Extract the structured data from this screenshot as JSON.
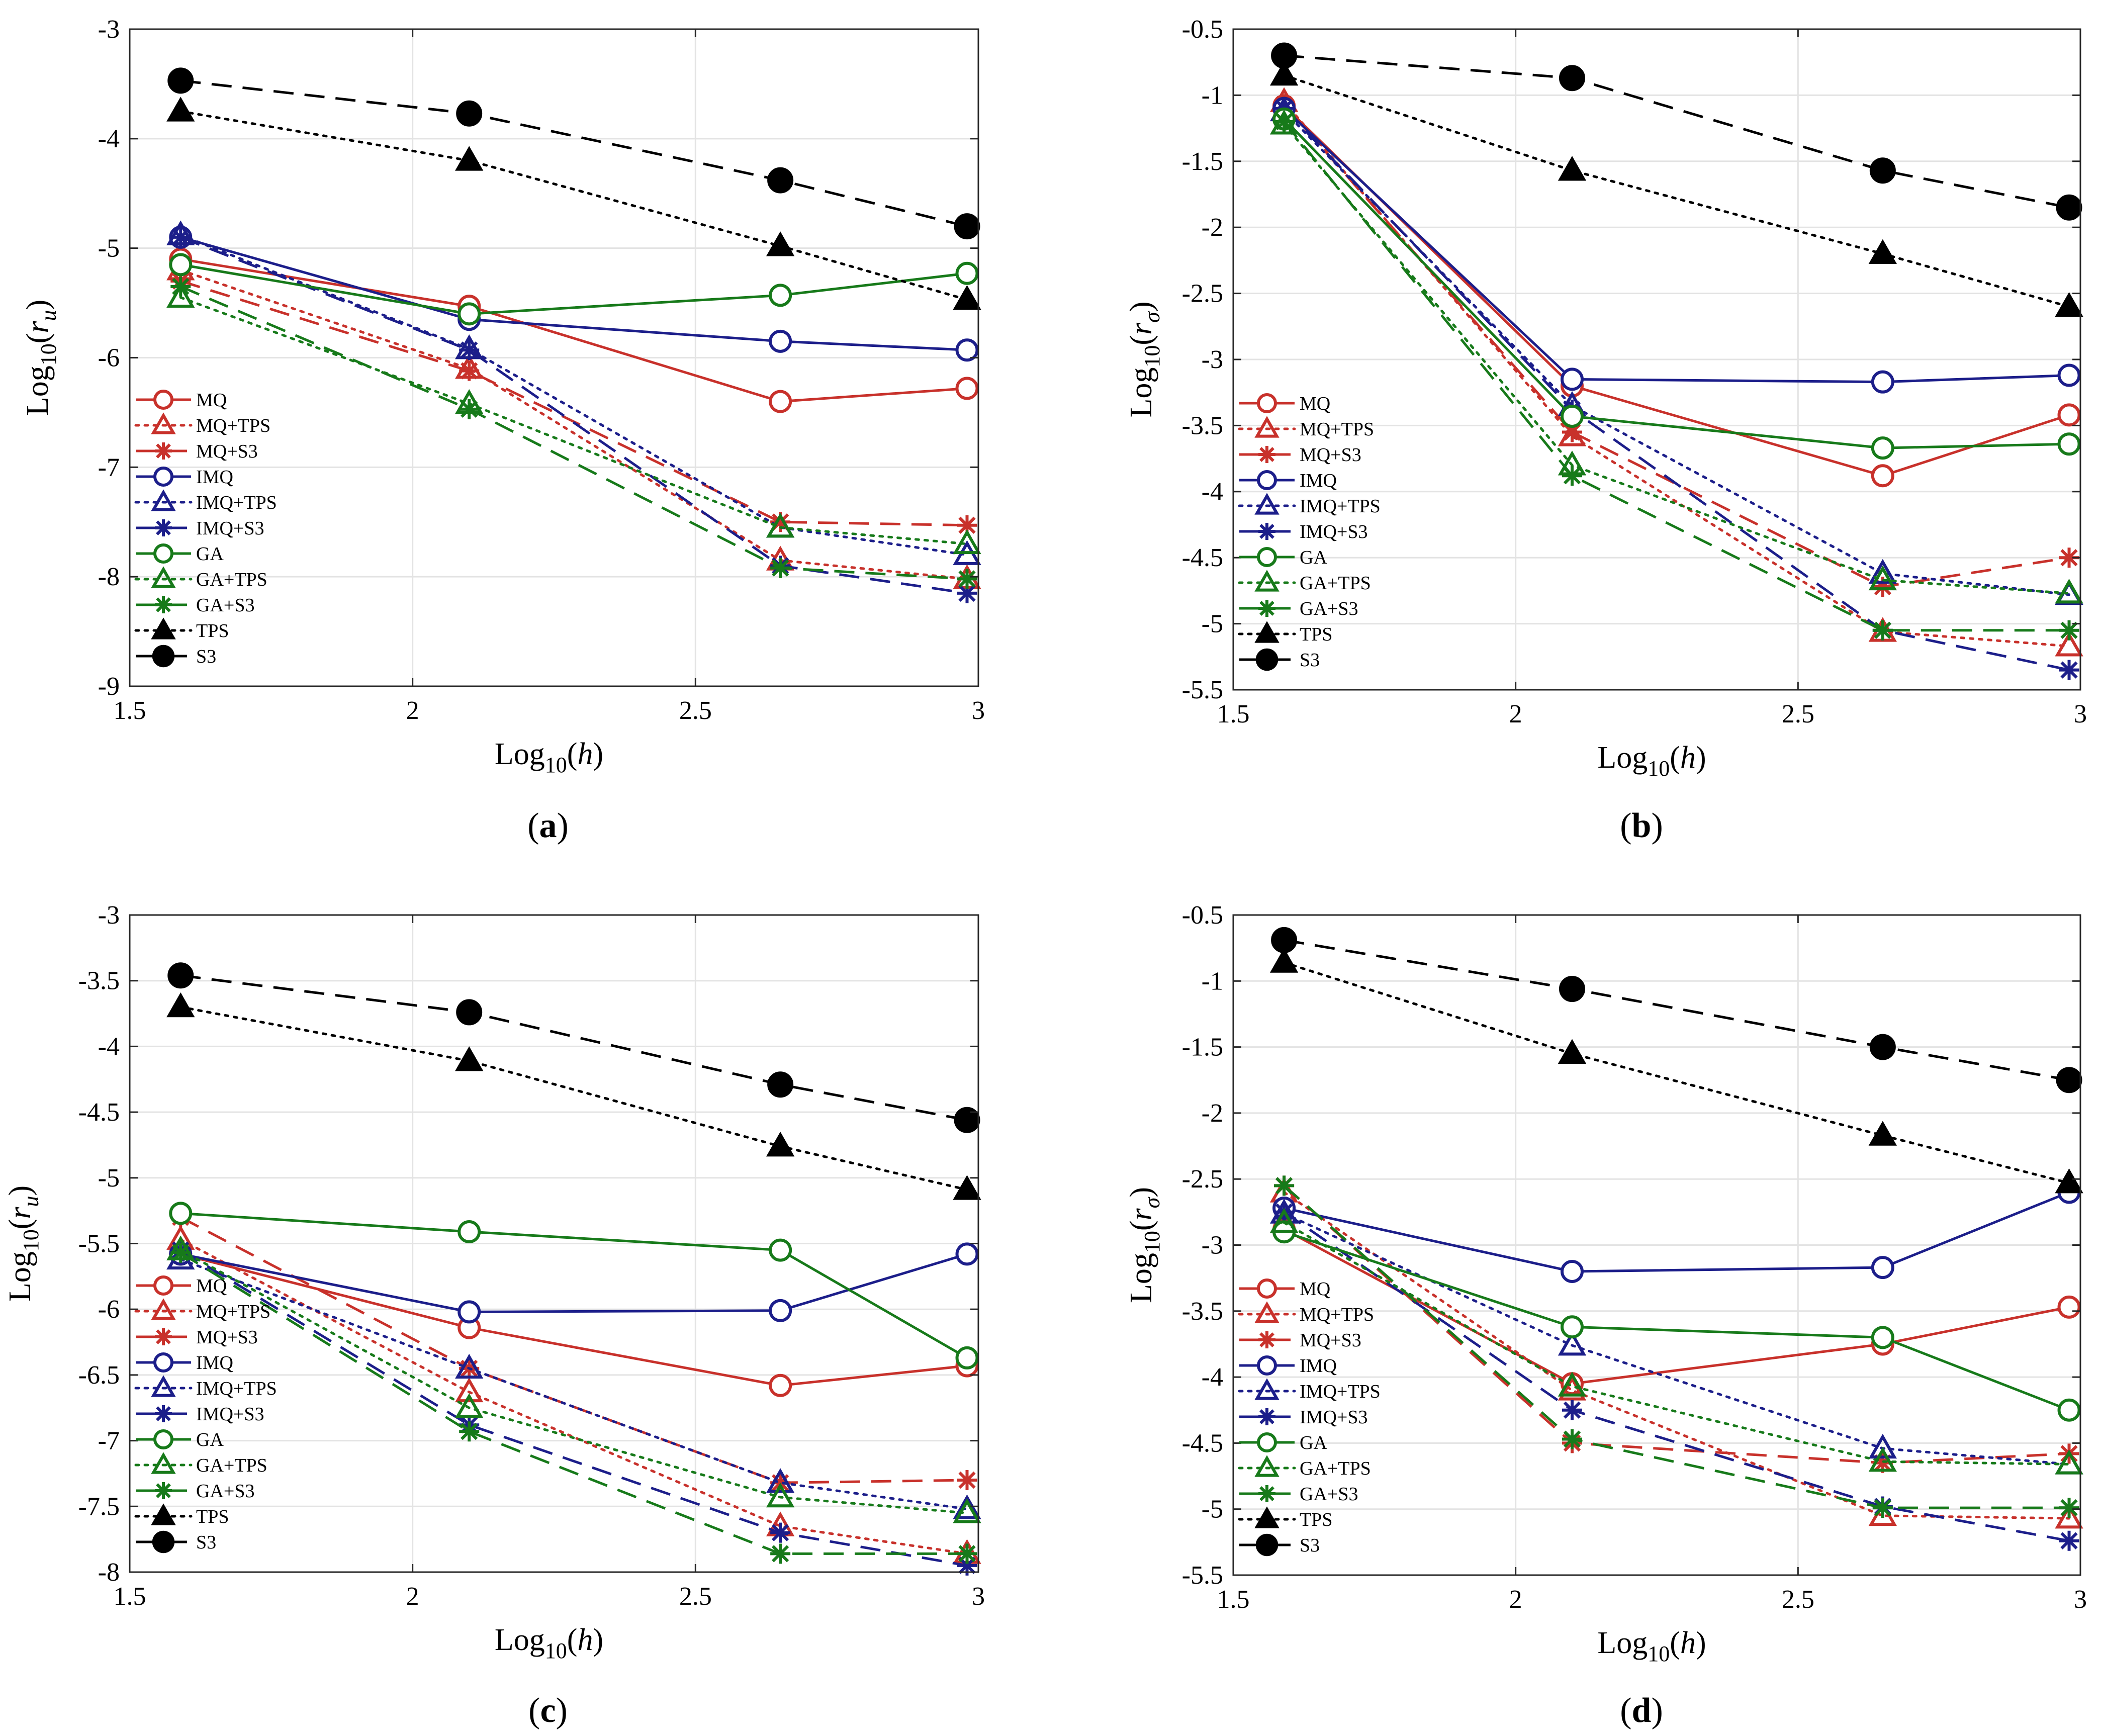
{
  "chart_data": [
    {
      "type": "line",
      "panel_label": "(a)",
      "panel_letter": "a",
      "xlabel": {
        "base": "Log",
        "sub": "10",
        "var": "h"
      },
      "ylabel": {
        "base": "Log",
        "sub": "10",
        "var": "r",
        "var_sub": "u"
      },
      "xlim": [
        1.5,
        3
      ],
      "ylim": [
        -9,
        -3
      ],
      "x_ticks": [
        1.5,
        2,
        2.5,
        3
      ],
      "x_tick_labels": [
        "1.5",
        "2",
        "2.5",
        "3"
      ],
      "y_ticks": [
        -9,
        -8,
        -7,
        -6,
        -5,
        -4,
        -3
      ],
      "y_tick_labels": [
        "-9",
        "-8",
        "-7",
        "-6",
        "-5",
        "-4",
        "-3"
      ],
      "grid": true,
      "legend_position": "lower-left",
      "x": [
        1.59,
        2.1,
        2.65,
        2.98
      ],
      "series": [
        {
          "name": "MQ",
          "values": [
            -5.1,
            -5.53,
            -6.4,
            -6.28
          ]
        },
        {
          "name": "MQ+TPS",
          "values": [
            -5.2,
            -6.1,
            -7.85,
            -8.02
          ]
        },
        {
          "name": "MQ+S3",
          "values": [
            -5.3,
            -6.12,
            -7.5,
            -7.53
          ]
        },
        {
          "name": "IMQ",
          "values": [
            -4.9,
            -5.65,
            -5.85,
            -5.93
          ]
        },
        {
          "name": "IMQ+TPS",
          "values": [
            -4.88,
            -5.92,
            -7.55,
            -7.8
          ]
        },
        {
          "name": "IMQ+S3",
          "values": [
            -4.9,
            -5.93,
            -7.9,
            -8.15
          ]
        },
        {
          "name": "GA",
          "values": [
            -5.15,
            -5.6,
            -5.43,
            -5.23
          ]
        },
        {
          "name": "GA+TPS",
          "values": [
            -5.45,
            -6.42,
            -7.55,
            -7.7
          ]
        },
        {
          "name": "GA+S3",
          "values": [
            -5.35,
            -6.47,
            -7.92,
            -8.02
          ]
        },
        {
          "name": "TPS",
          "values": [
            -3.75,
            -4.2,
            -4.98,
            -5.47
          ]
        },
        {
          "name": "S3",
          "values": [
            -3.47,
            -3.77,
            -4.38,
            -4.8
          ]
        }
      ]
    },
    {
      "type": "line",
      "panel_label": "(b)",
      "panel_letter": "b",
      "xlabel": {
        "base": "Log",
        "sub": "10",
        "var": "h"
      },
      "ylabel": {
        "base": "Log",
        "sub": "10",
        "var": "r",
        "var_sub": "σ"
      },
      "xlim": [
        1.5,
        3
      ],
      "ylim": [
        -5.5,
        -0.5
      ],
      "x_ticks": [
        1.5,
        2,
        2.5,
        3
      ],
      "x_tick_labels": [
        "1.5",
        "2",
        "2.5",
        "3"
      ],
      "y_ticks": [
        -5.5,
        -5,
        -4.5,
        -4,
        -3.5,
        -3,
        -2.5,
        -2,
        -1.5,
        -1,
        -0.5
      ],
      "y_tick_labels": [
        "-5.5",
        "-5",
        "-4.5",
        "-4",
        "-3.5",
        "-3",
        "-2.5",
        "-2",
        "-1.5",
        "-1",
        "-0.5"
      ],
      "grid": true,
      "legend_position": "lower-left",
      "x": [
        1.59,
        2.1,
        2.65,
        2.98
      ],
      "series": [
        {
          "name": "MQ",
          "values": [
            -1.08,
            -3.2,
            -3.88,
            -3.42
          ]
        },
        {
          "name": "MQ+TPS",
          "values": [
            -1.05,
            -3.58,
            -5.06,
            -5.17
          ]
        },
        {
          "name": "MQ+S3",
          "values": [
            -1.07,
            -3.55,
            -4.72,
            -4.5
          ]
        },
        {
          "name": "IMQ",
          "values": [
            -1.1,
            -3.15,
            -3.17,
            -3.12
          ]
        },
        {
          "name": "IMQ+TPS",
          "values": [
            -1.12,
            -3.35,
            -4.62,
            -4.78
          ]
        },
        {
          "name": "IMQ+S3",
          "values": [
            -1.1,
            -3.38,
            -5.05,
            -5.35
          ]
        },
        {
          "name": "GA",
          "values": [
            -1.18,
            -3.43,
            -3.67,
            -3.64
          ]
        },
        {
          "name": "GA+TPS",
          "values": [
            -1.22,
            -3.8,
            -4.67,
            -4.77
          ]
        },
        {
          "name": "GA+S3",
          "values": [
            -1.2,
            -3.88,
            -5.05,
            -5.05
          ]
        },
        {
          "name": "TPS",
          "values": [
            -0.85,
            -1.57,
            -2.2,
            -2.6
          ]
        },
        {
          "name": "S3",
          "values": [
            -0.7,
            -0.87,
            -1.57,
            -1.85
          ]
        }
      ]
    },
    {
      "type": "line",
      "panel_label": "(c)",
      "panel_letter": "c",
      "xlabel": {
        "base": "Log",
        "sub": "10",
        "var": "h"
      },
      "ylabel": {
        "base": "Log",
        "sub": "10",
        "var": "r",
        "var_sub": "u"
      },
      "xlim": [
        1.5,
        3
      ],
      "ylim": [
        -8,
        -3
      ],
      "x_ticks": [
        1.5,
        2,
        2.5,
        3
      ],
      "x_tick_labels": [
        "1.5",
        "2",
        "2.5",
        "3"
      ],
      "y_ticks": [
        -8,
        -7.5,
        -7,
        -6.5,
        -6,
        -5.5,
        -5,
        -4.5,
        -4,
        -3.5,
        -3
      ],
      "y_tick_labels": [
        "-8",
        "-7.5",
        "-7",
        "-6.5",
        "-6",
        "-5.5",
        "-5",
        "-4.5",
        "-4",
        "-3.5",
        "-3"
      ],
      "grid": true,
      "legend_position": "lower-left",
      "x": [
        1.59,
        2.1,
        2.65,
        2.98
      ],
      "series": [
        {
          "name": "MQ",
          "values": [
            -5.58,
            -6.14,
            -6.58,
            -6.43
          ]
        },
        {
          "name": "MQ+TPS",
          "values": [
            -5.47,
            -6.63,
            -7.65,
            -7.86
          ]
        },
        {
          "name": "MQ+S3",
          "values": [
            -5.3,
            -6.45,
            -7.32,
            -7.3
          ]
        },
        {
          "name": "IMQ",
          "values": [
            -5.58,
            -6.02,
            -6.01,
            -5.58
          ]
        },
        {
          "name": "IMQ+TPS",
          "values": [
            -5.62,
            -6.45,
            -7.32,
            -7.52
          ]
        },
        {
          "name": "IMQ+S3",
          "values": [
            -5.55,
            -6.88,
            -7.7,
            -7.95
          ]
        },
        {
          "name": "GA",
          "values": [
            -5.27,
            -5.41,
            -5.55,
            -6.37
          ]
        },
        {
          "name": "GA+TPS",
          "values": [
            -5.55,
            -6.75,
            -7.43,
            -7.55
          ]
        },
        {
          "name": "GA+S3",
          "values": [
            -5.57,
            -6.93,
            -7.86,
            -7.86
          ]
        },
        {
          "name": "TPS",
          "values": [
            -3.7,
            -4.11,
            -4.76,
            -5.09
          ]
        },
        {
          "name": "S3",
          "values": [
            -3.46,
            -3.74,
            -4.29,
            -4.56
          ]
        }
      ]
    },
    {
      "type": "line",
      "panel_label": "(d)",
      "panel_letter": "d",
      "xlabel": {
        "base": "Log",
        "sub": "10",
        "var": "h"
      },
      "ylabel": {
        "base": "Log",
        "sub": "10",
        "var": "r",
        "var_sub": "σ"
      },
      "xlim": [
        1.5,
        3
      ],
      "ylim": [
        -5.5,
        -0.5
      ],
      "x_ticks": [
        1.5,
        2,
        2.5,
        3
      ],
      "x_tick_labels": [
        "1.5",
        "2",
        "2.5",
        "3"
      ],
      "y_ticks": [
        -5.5,
        -5,
        -4.5,
        -4,
        -3.5,
        -3,
        -2.5,
        -2,
        -1.5,
        -1,
        -0.5
      ],
      "y_tick_labels": [
        "-5.5",
        "-5",
        "-4.5",
        "-4",
        "-3.5",
        "-3",
        "-2.5",
        "-2",
        "-1.5",
        "-1",
        "-0.5"
      ],
      "grid": true,
      "legend_position": "lower-left",
      "x": [
        1.59,
        2.1,
        2.65,
        2.98
      ],
      "series": [
        {
          "name": "MQ",
          "values": [
            -2.88,
            -4.05,
            -3.75,
            -3.47
          ]
        },
        {
          "name": "MQ+TPS",
          "values": [
            -2.6,
            -4.1,
            -5.05,
            -5.07
          ]
        },
        {
          "name": "MQ+S3",
          "values": [
            -2.55,
            -4.5,
            -4.65,
            -4.58
          ]
        },
        {
          "name": "IMQ",
          "values": [
            -2.72,
            -3.2,
            -3.17,
            -2.6
          ]
        },
        {
          "name": "IMQ+TPS",
          "values": [
            -2.76,
            -3.76,
            -4.54,
            -4.66
          ]
        },
        {
          "name": "IMQ+S3",
          "values": [
            -2.75,
            -4.25,
            -4.98,
            -5.24
          ]
        },
        {
          "name": "GA",
          "values": [
            -2.9,
            -3.62,
            -3.7,
            -4.25
          ]
        },
        {
          "name": "GA+TPS",
          "values": [
            -2.83,
            -4.07,
            -4.64,
            -4.66
          ]
        },
        {
          "name": "GA+S3",
          "values": [
            -2.55,
            -4.47,
            -4.99,
            -4.99
          ]
        },
        {
          "name": "TPS",
          "values": [
            -0.86,
            -1.55,
            -2.17,
            -2.53
          ]
        },
        {
          "name": "S3",
          "values": [
            -0.69,
            -1.06,
            -1.5,
            -1.75
          ]
        }
      ]
    }
  ],
  "series_styles": {
    "MQ": {
      "color": "#c8312b",
      "dash": "solid",
      "marker": "circle-open"
    },
    "MQ+TPS": {
      "color": "#c8312b",
      "dash": "dotted",
      "marker": "triangle-open"
    },
    "MQ+S3": {
      "color": "#c8312b",
      "dash": "dashed",
      "marker": "asterisk"
    },
    "IMQ": {
      "color": "#1c1e8a",
      "dash": "solid",
      "marker": "circle-open"
    },
    "IMQ+TPS": {
      "color": "#1c1e8a",
      "dash": "dotted",
      "marker": "triangle-open"
    },
    "IMQ+S3": {
      "color": "#1c1e8a",
      "dash": "dashed",
      "marker": "asterisk"
    },
    "GA": {
      "color": "#177a1a",
      "dash": "solid",
      "marker": "circle-open"
    },
    "GA+TPS": {
      "color": "#177a1a",
      "dash": "dotted",
      "marker": "triangle-open"
    },
    "GA+S3": {
      "color": "#177a1a",
      "dash": "dashed",
      "marker": "asterisk"
    },
    "TPS": {
      "color": "#000000",
      "dash": "dotted",
      "marker": "triangle-filled"
    },
    "S3": {
      "color": "#000000",
      "dash": "dashed",
      "marker": "circle-filled"
    }
  }
}
